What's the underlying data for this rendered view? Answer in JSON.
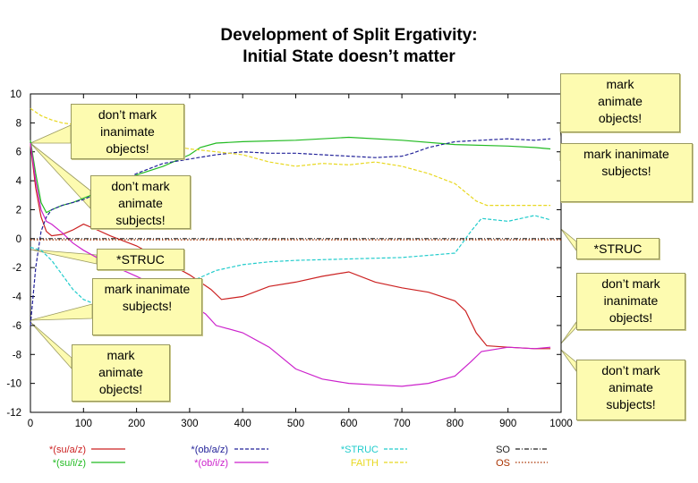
{
  "chart_data": {
    "type": "line",
    "title": [
      "Development of Split Ergativity:",
      "Initial State doesn’t matter"
    ],
    "xlabel": "",
    "ylabel": "",
    "xlim": [
      0,
      1000
    ],
    "ylim": [
      -12,
      10
    ],
    "x_ticks": [
      "0",
      "100",
      "200",
      "300",
      "400",
      "500",
      "600",
      "700",
      "800",
      "900",
      "1000"
    ],
    "y_ticks": [
      "10",
      "8",
      "6",
      "4",
      "2",
      "0",
      "-2",
      "-4",
      "-6",
      "-8",
      "-10",
      "-12"
    ],
    "x_tick_values": [
      0,
      100,
      200,
      300,
      400,
      500,
      600,
      700,
      800,
      900,
      1000
    ],
    "y_tick_values": [
      10,
      8,
      6,
      4,
      2,
      0,
      -2,
      -4,
      -6,
      -8,
      -10,
      -12
    ],
    "grid": false,
    "legend_position": "bottom",
    "series": [
      {
        "name": "*(su/a/z)",
        "color": "#cc2222",
        "dash": "solid",
        "x": [
          0,
          10,
          20,
          30,
          40,
          60,
          80,
          100,
          120,
          150,
          200,
          250,
          300,
          340,
          360,
          400,
          450,
          500,
          550,
          600,
          650,
          700,
          750,
          800,
          820,
          840,
          860,
          900,
          950,
          980
        ],
        "y": [
          6.5,
          3.5,
          1.5,
          0.5,
          0.2,
          0.3,
          0.6,
          1.0,
          0.7,
          0.2,
          -0.5,
          -1.5,
          -2.5,
          -3.5,
          -4.2,
          -4.0,
          -3.3,
          -3.0,
          -2.6,
          -2.3,
          -3.0,
          -3.4,
          -3.7,
          -4.3,
          -5.0,
          -6.5,
          -7.4,
          -7.5,
          -7.6,
          -7.6
        ]
      },
      {
        "name": "*(su/i/z)",
        "color": "#22bb22",
        "dash": "solid",
        "x": [
          0,
          10,
          20,
          30,
          40,
          60,
          80,
          100,
          150,
          200,
          250,
          300,
          320,
          350,
          400,
          500,
          600,
          700,
          800,
          900,
          950,
          980
        ],
        "y": [
          6.8,
          4.5,
          2.5,
          1.8,
          2.0,
          2.3,
          2.5,
          2.8,
          3.5,
          4.4,
          5.0,
          5.8,
          6.3,
          6.6,
          6.7,
          6.8,
          7.0,
          6.8,
          6.5,
          6.4,
          6.3,
          6.2
        ]
      },
      {
        "name": "*(ob/a/z)",
        "color": "#222299",
        "dash": "dashed",
        "x": [
          0,
          10,
          20,
          30,
          40,
          60,
          80,
          100,
          150,
          200,
          250,
          300,
          350,
          400,
          450,
          500,
          550,
          600,
          650,
          700,
          720,
          750,
          800,
          850,
          900,
          950,
          980
        ],
        "y": [
          -6.0,
          -2.0,
          0.5,
          1.5,
          2.0,
          2.3,
          2.5,
          2.7,
          3.5,
          4.5,
          5.2,
          5.5,
          5.8,
          6.0,
          5.9,
          5.9,
          5.8,
          5.7,
          5.6,
          5.7,
          5.9,
          6.3,
          6.7,
          6.8,
          6.9,
          6.8,
          6.9
        ]
      },
      {
        "name": "*(ob/i/z)",
        "color": "#cc22cc",
        "dash": "solid",
        "x": [
          0,
          10,
          20,
          30,
          40,
          60,
          80,
          100,
          150,
          200,
          250,
          300,
          330,
          350,
          400,
          450,
          500,
          550,
          600,
          650,
          700,
          750,
          800,
          830,
          850,
          900,
          950,
          980
        ],
        "y": [
          6.6,
          4.0,
          2.0,
          1.2,
          1.0,
          0.4,
          -0.3,
          -0.8,
          -1.8,
          -2.6,
          -3.5,
          -4.5,
          -5.2,
          -6.0,
          -6.5,
          -7.5,
          -9.0,
          -9.7,
          -10.0,
          -10.1,
          -10.2,
          -10.0,
          -9.5,
          -8.5,
          -7.8,
          -7.5,
          -7.6,
          -7.5
        ]
      },
      {
        "name": "*STRUC",
        "color": "#22cccc",
        "dash": "dashed",
        "x": [
          0,
          20,
          40,
          60,
          80,
          100,
          120,
          150,
          200,
          250,
          300,
          350,
          400,
          450,
          500,
          600,
          700,
          800,
          830,
          850,
          900,
          950,
          980
        ],
        "y": [
          -0.6,
          -0.8,
          -1.5,
          -2.5,
          -3.5,
          -4.2,
          -4.5,
          -4.3,
          -4.0,
          -3.5,
          -3.0,
          -2.2,
          -1.8,
          -1.6,
          -1.5,
          -1.4,
          -1.3,
          -1.0,
          0.5,
          1.4,
          1.2,
          1.6,
          1.3
        ]
      },
      {
        "name": "FAITH",
        "color": "#e8d820",
        "dash": "dashed",
        "x": [
          0,
          20,
          40,
          60,
          100,
          150,
          200,
          250,
          300,
          350,
          400,
          450,
          500,
          550,
          600,
          650,
          700,
          750,
          800,
          820,
          840,
          860,
          900,
          950,
          980
        ],
        "y": [
          9.0,
          8.5,
          8.2,
          8.0,
          7.8,
          7.5,
          7.0,
          6.5,
          6.2,
          6.0,
          5.8,
          5.3,
          5.0,
          5.2,
          5.1,
          5.3,
          5.0,
          4.5,
          3.8,
          3.2,
          2.6,
          2.3,
          2.3,
          2.3,
          2.3
        ]
      },
      {
        "name": "SO",
        "color": "#222222",
        "dash": "dashdot",
        "x": [
          0,
          1000
        ],
        "y": [
          0.0,
          0.0
        ]
      },
      {
        "name": "OS",
        "color": "#aa3300",
        "dash": "dotted",
        "x": [
          0,
          1000
        ],
        "y": [
          -0.08,
          -0.08
        ]
      }
    ],
    "annotations": [
      {
        "lines": [
          "don’t mark",
          "inanimate",
          "objects!"
        ]
      },
      {
        "lines": [
          "don’t mark",
          "animate",
          "subjects!"
        ]
      },
      {
        "lines": [
          "*STRUC"
        ]
      },
      {
        "lines": [
          "mark inanimate",
          "subjects!"
        ]
      },
      {
        "lines": [
          "mark",
          "animate",
          "objects!"
        ]
      },
      {
        "lines": [
          "mark",
          "animate",
          "objects!"
        ]
      },
      {
        "lines": [
          "mark inanimate",
          "subjects!"
        ]
      },
      {
        "lines": [
          "*STRUC"
        ]
      },
      {
        "lines": [
          "don’t mark",
          "inanimate",
          "objects!"
        ]
      },
      {
        "lines": [
          "don’t mark",
          "animate",
          "subjects!"
        ]
      }
    ]
  }
}
